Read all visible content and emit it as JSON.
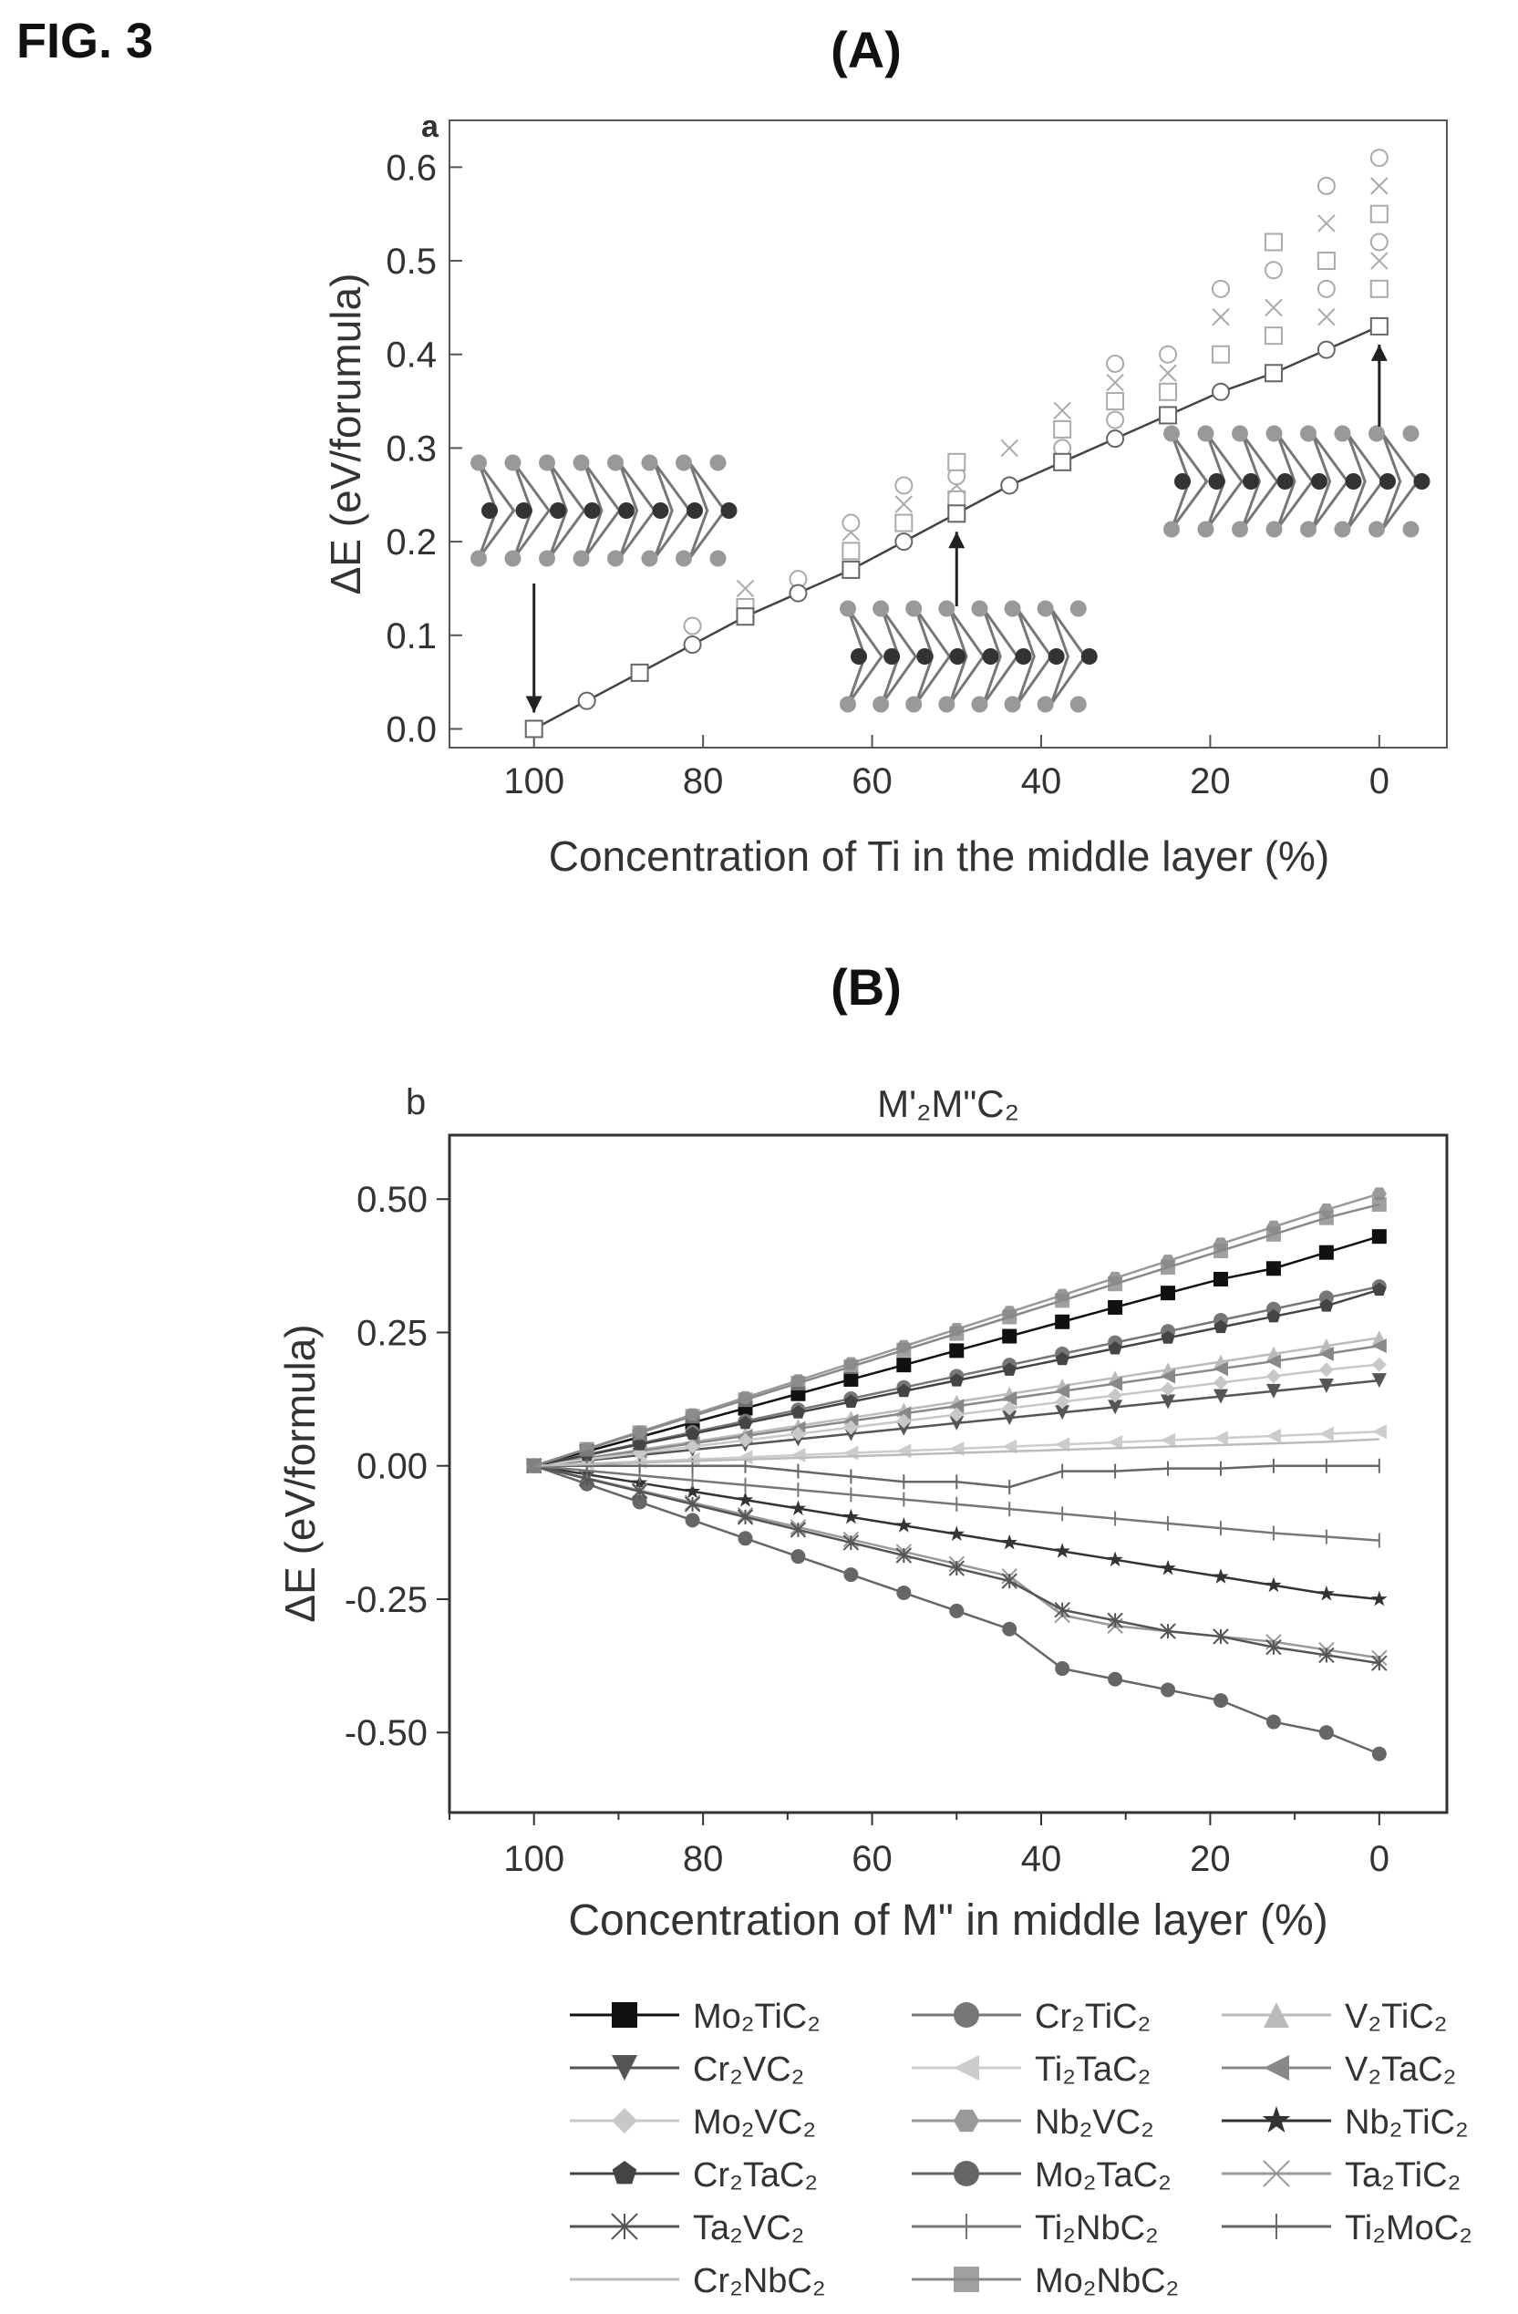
{
  "figure_label": "FIG. 3",
  "chart_data": [
    {
      "panel": "(A)",
      "corner_letter": "a",
      "type": "scatter",
      "title": "",
      "xlabel": "Concentration of Ti in the middle layer (%)",
      "ylabel": "ΔE (eV/forumula)",
      "xlim": [
        110,
        -8
      ],
      "ylim": [
        -0.02,
        0.65
      ],
      "xticks": [
        100,
        80,
        60,
        40,
        20,
        0
      ],
      "yticks": [
        0.0,
        0.1,
        0.2,
        0.3,
        0.4,
        0.5,
        0.6
      ],
      "ytick_labels": [
        "0.0",
        "0.1",
        "0.2",
        "0.3",
        "0.4",
        "0.5",
        "0.6"
      ],
      "grid": false,
      "main_series": {
        "x": [
          100,
          93.75,
          87.5,
          81.25,
          75,
          68.75,
          62.5,
          56.25,
          50,
          43.75,
          37.5,
          31.25,
          25,
          18.75,
          12.5,
          6.25,
          0
        ],
        "y": [
          0.0,
          0.03,
          0.06,
          0.09,
          0.12,
          0.145,
          0.17,
          0.2,
          0.23,
          0.26,
          0.285,
          0.31,
          0.335,
          0.36,
          0.38,
          0.405,
          0.43
        ]
      },
      "scatter_points": {
        "x": [
          81.25,
          75,
          75,
          68.75,
          62.5,
          62.5,
          62.5,
          56.25,
          56.25,
          56.25,
          50,
          50,
          50,
          50,
          43.75,
          37.5,
          37.5,
          37.5,
          31.25,
          31.25,
          31.25,
          31.25,
          25,
          25,
          25,
          18.75,
          18.75,
          18.75,
          12.5,
          12.5,
          12.5,
          12.5,
          6.25,
          6.25,
          6.25,
          6.25,
          6.25,
          0,
          0,
          0,
          0,
          0,
          0
        ],
        "y": [
          0.11,
          0.13,
          0.15,
          0.16,
          0.19,
          0.21,
          0.22,
          0.22,
          0.24,
          0.26,
          0.245,
          0.26,
          0.27,
          0.285,
          0.3,
          0.3,
          0.32,
          0.34,
          0.33,
          0.35,
          0.37,
          0.39,
          0.36,
          0.38,
          0.4,
          0.4,
          0.44,
          0.47,
          0.42,
          0.45,
          0.49,
          0.52,
          0.44,
          0.47,
          0.5,
          0.54,
          0.58,
          0.47,
          0.5,
          0.52,
          0.55,
          0.58,
          0.61
        ]
      }
    },
    {
      "panel": "(B)",
      "corner_letter": "b",
      "type": "line",
      "title": "M'₂M\"C₂",
      "xlabel": "Concentration of M\" in middle layer (%)",
      "ylabel": "ΔE (eV/formula)",
      "xlim": [
        110,
        -8
      ],
      "ylim": [
        -0.65,
        0.62
      ],
      "xticks": [
        100,
        80,
        60,
        40,
        20,
        0
      ],
      "yticks": [
        0.5,
        0.25,
        0.0,
        -0.25,
        -0.5
      ],
      "ytick_labels": [
        "0.50",
        "0.25",
        "0.00",
        "-0.25",
        "-0.50"
      ],
      "grid": false,
      "legend_position": "bottom",
      "x": [
        100,
        93.75,
        87.5,
        81.25,
        75,
        68.75,
        62.5,
        56.25,
        50,
        43.75,
        37.5,
        31.25,
        25,
        18.75,
        12.5,
        6.25,
        0
      ],
      "series": [
        {
          "name": "Mo₂TiC₂",
          "marker": "square-filled",
          "color": "#111111",
          "values": [
            0,
            0.027,
            0.054,
            0.081,
            0.108,
            0.135,
            0.162,
            0.189,
            0.216,
            0.243,
            0.27,
            0.297,
            0.324,
            0.35,
            0.37,
            0.4,
            0.43
          ]
        },
        {
          "name": "Cr₂TiC₂",
          "marker": "circle",
          "color": "#777777",
          "values": [
            0,
            0.021,
            0.042,
            0.063,
            0.084,
            0.105,
            0.126,
            0.147,
            0.168,
            0.189,
            0.21,
            0.231,
            0.252,
            0.273,
            0.294,
            0.315,
            0.336
          ]
        },
        {
          "name": "V₂TiC₂",
          "marker": "triangle-up",
          "color": "#bbbbbb",
          "values": [
            0,
            0.015,
            0.03,
            0.045,
            0.06,
            0.075,
            0.09,
            0.105,
            0.12,
            0.135,
            0.15,
            0.165,
            0.18,
            0.195,
            0.21,
            0.225,
            0.24
          ]
        },
        {
          "name": "Cr₂VC₂",
          "marker": "triangle-down",
          "color": "#555555",
          "values": [
            0,
            0.01,
            0.02,
            0.03,
            0.04,
            0.05,
            0.06,
            0.07,
            0.08,
            0.09,
            0.1,
            0.11,
            0.12,
            0.13,
            0.14,
            0.15,
            0.16
          ]
        },
        {
          "name": "Ti₂TaC₂",
          "marker": "triangle-left",
          "color": "#cccccc",
          "values": [
            0,
            0.004,
            0.008,
            0.012,
            0.016,
            0.02,
            0.024,
            0.028,
            0.032,
            0.036,
            0.04,
            0.044,
            0.048,
            0.052,
            0.056,
            0.06,
            0.064
          ]
        },
        {
          "name": "V₂TaC₂",
          "marker": "triangle-left",
          "color": "#888888",
          "values": [
            0,
            0.014,
            0.028,
            0.042,
            0.056,
            0.07,
            0.084,
            0.098,
            0.112,
            0.126,
            0.14,
            0.154,
            0.168,
            0.182,
            0.196,
            0.21,
            0.225
          ]
        },
        {
          "name": "Mo₂VC₂",
          "marker": "diamond",
          "color": "#c8c8c8",
          "values": [
            0,
            0.012,
            0.024,
            0.036,
            0.048,
            0.06,
            0.072,
            0.084,
            0.096,
            0.108,
            0.12,
            0.132,
            0.144,
            0.156,
            0.168,
            0.18,
            0.19
          ]
        },
        {
          "name": "Nb₂VC₂",
          "marker": "hexagon",
          "color": "#999999",
          "values": [
            0,
            0.032,
            0.064,
            0.096,
            0.128,
            0.16,
            0.192,
            0.224,
            0.256,
            0.288,
            0.32,
            0.352,
            0.384,
            0.416,
            0.448,
            0.48,
            0.51
          ]
        },
        {
          "name": "Nb₂TiC₂",
          "marker": "star",
          "color": "#333333",
          "values": [
            0,
            -0.016,
            -0.032,
            -0.048,
            -0.064,
            -0.08,
            -0.096,
            -0.112,
            -0.128,
            -0.144,
            -0.16,
            -0.176,
            -0.192,
            -0.208,
            -0.224,
            -0.24,
            -0.25
          ]
        },
        {
          "name": "Cr₂TaC₂",
          "marker": "pentagon",
          "color": "#444444",
          "values": [
            0,
            0.02,
            0.04,
            0.06,
            0.08,
            0.1,
            0.12,
            0.14,
            0.16,
            0.18,
            0.2,
            0.22,
            0.24,
            0.26,
            0.28,
            0.3,
            0.33
          ]
        },
        {
          "name": "Mo₂TaC₂",
          "marker": "circle",
          "color": "#666666",
          "values": [
            0,
            -0.034,
            -0.068,
            -0.102,
            -0.136,
            -0.17,
            -0.204,
            -0.238,
            -0.272,
            -0.306,
            -0.38,
            -0.4,
            -0.42,
            -0.44,
            -0.48,
            -0.5,
            -0.54
          ]
        },
        {
          "name": "Ta₂TiC₂",
          "marker": "x",
          "color": "#999999",
          "values": [
            0,
            -0.023,
            -0.046,
            -0.069,
            -0.092,
            -0.115,
            -0.138,
            -0.161,
            -0.184,
            -0.207,
            -0.28,
            -0.3,
            -0.31,
            -0.32,
            -0.33,
            -0.345,
            -0.36
          ]
        },
        {
          "name": "Ta₂VC₂",
          "marker": "asterisk",
          "color": "#555555",
          "values": [
            0,
            -0.024,
            -0.048,
            -0.072,
            -0.096,
            -0.12,
            -0.144,
            -0.168,
            -0.192,
            -0.216,
            -0.27,
            -0.29,
            -0.31,
            -0.32,
            -0.34,
            -0.355,
            -0.37
          ]
        },
        {
          "name": "Ti₂NbC₂",
          "marker": "plus",
          "color": "#777777",
          "values": [
            0,
            -0.009,
            -0.018,
            -0.027,
            -0.036,
            -0.045,
            -0.054,
            -0.063,
            -0.072,
            -0.081,
            -0.09,
            -0.099,
            -0.108,
            -0.117,
            -0.126,
            -0.133,
            -0.14
          ]
        },
        {
          "name": "Ti₂MoC₂",
          "marker": "plus",
          "color": "#666666",
          "values": [
            0,
            0.0,
            0.0,
            0.0,
            0.0,
            -0.01,
            -0.02,
            -0.03,
            -0.03,
            -0.04,
            -0.01,
            -0.01,
            -0.005,
            -0.005,
            0.0,
            0.0,
            0.0
          ]
        },
        {
          "name": "Cr₂NbC₂",
          "marker": "none",
          "color": "#bbbbbb",
          "values": [
            0,
            0.003,
            0.006,
            0.009,
            0.012,
            0.015,
            0.018,
            0.021,
            0.024,
            0.027,
            0.03,
            0.033,
            0.036,
            0.039,
            0.042,
            0.045,
            0.05
          ]
        },
        {
          "name": "Mo₂NbC₂",
          "marker": "square",
          "color": "#888888",
          "values": [
            0,
            0.031,
            0.062,
            0.093,
            0.124,
            0.155,
            0.186,
            0.217,
            0.248,
            0.279,
            0.31,
            0.341,
            0.372,
            0.403,
            0.434,
            0.465,
            0.49
          ]
        }
      ]
    }
  ]
}
